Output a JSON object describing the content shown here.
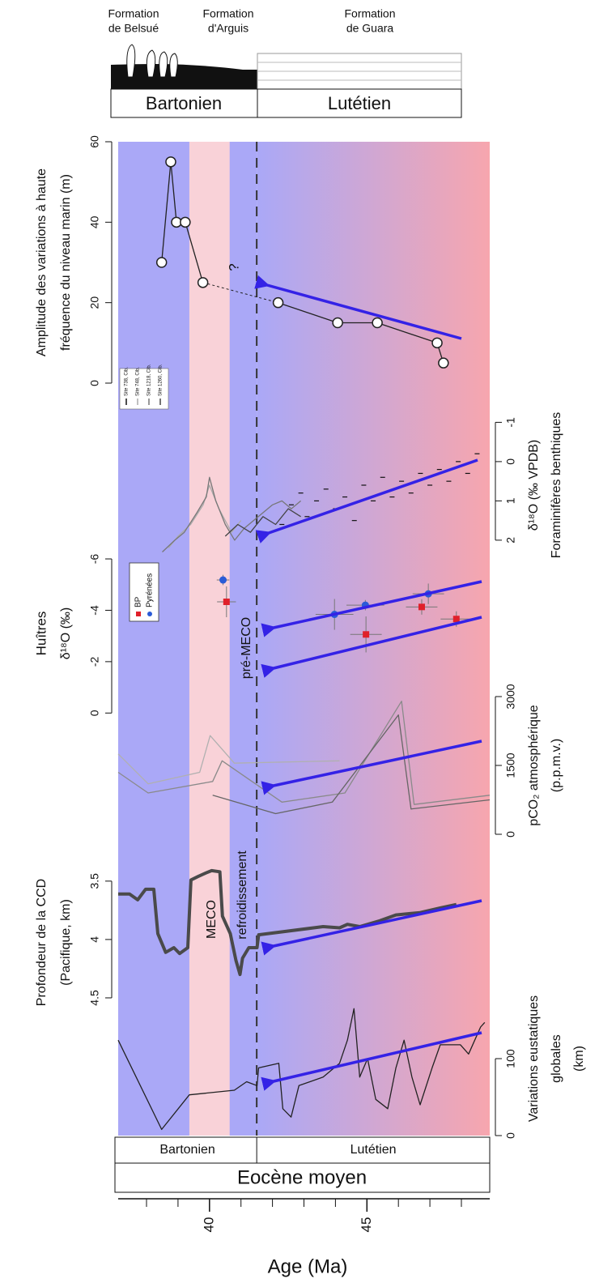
{
  "header": {
    "formations": [
      [
        "Formation",
        "de Belsué"
      ],
      [
        "Formation",
        "d'Arguis"
      ],
      [
        "Formation",
        "de Guara"
      ]
    ],
    "stages": [
      "Bartonien",
      "Lutétien"
    ],
    "epoch": "Eocène moyen"
  },
  "age_axis": {
    "label": "Age (Ma)",
    "xlim": [
      37.1,
      48.9
    ],
    "xticks": [
      40,
      45
    ],
    "minor_xticks": [
      38,
      39,
      41,
      42,
      43,
      44,
      46,
      47,
      48
    ]
  },
  "meco_interval": [
    39.36,
    40.64
  ],
  "cooling_onset": 41.5,
  "annotations": [
    "pré-MECO",
    "MECO",
    "refroidissement"
  ],
  "chart_data": [
    {
      "type": "line",
      "axis_side": "left",
      "axis_label": [
        "Amplitude des variations à haute",
        "fréquence du niveau marin (m)"
      ],
      "ylim": [
        0,
        60
      ],
      "yticks": [
        0,
        20,
        40,
        60
      ],
      "color": "#222",
      "markers": true,
      "annotation": "?",
      "series": [
        {
          "x": [
            38.48,
            38.77,
            38.95,
            39.23,
            39.79
          ],
          "values": [
            30,
            55,
            40,
            40,
            25
          ]
        },
        {
          "x": [
            42.18,
            44.07,
            45.33,
            47.23,
            47.43
          ],
          "values": [
            20,
            15,
            15,
            10,
            5
          ]
        }
      ]
    },
    {
      "type": "line",
      "axis_side": "right",
      "axis_label": [
        "δ¹⁸O (‰ VPDB)",
        "Foraminifères benthiques"
      ],
      "ylim": [
        -1.4,
        2.6
      ],
      "inverted": true,
      "yticks": [
        -1,
        0,
        1,
        2
      ],
      "series": [
        {
          "name": "Site 738, Cib.",
          "color": "#111",
          "style": "dash",
          "x": [
            42.3,
            42.6,
            42.9,
            43.1,
            43.4,
            43.7,
            44.0,
            44.3,
            44.6,
            44.9,
            45.2,
            45.5,
            45.8,
            46.1,
            46.4,
            46.7,
            47.0,
            47.3,
            47.6,
            47.9,
            48.2,
            48.5
          ],
          "values": [
            1.6,
            1.1,
            0.8,
            1.4,
            1.0,
            0.7,
            1.2,
            0.9,
            1.5,
            0.6,
            1.0,
            0.4,
            0.9,
            0.5,
            0.8,
            0.3,
            0.6,
            0.2,
            0.5,
            0.0,
            0.3,
            -0.2
          ]
        },
        {
          "name": "Site 748, Cib.",
          "color": "#aaa",
          "style": "line",
          "x": [
            38.7,
            39.0,
            39.4,
            39.8,
            40.0,
            40.3,
            40.7,
            41.0
          ],
          "values": [
            2.2,
            1.9,
            1.6,
            1.1,
            0.6,
            1.2,
            1.8,
            1.5
          ]
        },
        {
          "name": "Site 1218, Cib.",
          "color": "#777",
          "style": "line",
          "x": [
            38.5,
            38.9,
            39.2,
            39.6,
            39.9,
            40.0,
            40.2,
            40.5,
            40.8,
            41.1,
            41.4,
            41.7,
            42.0,
            42.3,
            42.6,
            42.9
          ],
          "values": [
            2.3,
            2.0,
            1.8,
            1.3,
            0.9,
            0.4,
            1.0,
            1.6,
            2.0,
            1.7,
            1.5,
            1.3,
            1.1,
            1.0,
            1.2,
            1.0
          ]
        },
        {
          "name": "Site 1260, Cib.",
          "color": "#444",
          "style": "line",
          "x": [
            40.5,
            40.9,
            41.3,
            41.7,
            42.1,
            42.5,
            42.9
          ],
          "values": [
            1.9,
            1.6,
            1.8,
            1.4,
            1.6,
            1.2,
            1.4
          ]
        }
      ]
    },
    {
      "type": "scatter",
      "axis_side": "left",
      "axis_label": [
        "Huîtres",
        "δ¹⁸O (‰)"
      ],
      "ylim": [
        -6.6,
        0.4
      ],
      "inverted": true,
      "yticks": [
        -6,
        -4,
        -2,
        0
      ],
      "series": [
        {
          "name": "BP",
          "color": "#e0202a",
          "marker": "square",
          "x": [
            40.54,
            44.97,
            46.74,
            47.84
          ],
          "values": [
            -4.33,
            -3.06,
            -4.13,
            -3.66
          ],
          "errors": [
            0.6,
            0.7,
            0.3,
            0.3
          ],
          "x_errors": [
            0.3,
            0.5,
            0.5,
            0.5
          ]
        },
        {
          "name": "Pyrénées",
          "color": "#2a5bd7",
          "marker": "circle",
          "x": [
            40.43,
            43.97,
            44.95,
            46.95
          ],
          "values": [
            -5.18,
            -3.84,
            -4.2,
            -4.64
          ],
          "errors": [
            0.2,
            0.6,
            0.2,
            0.4
          ],
          "x_errors": [
            0.2,
            0.6,
            0.6,
            0.5
          ]
        }
      ]
    },
    {
      "type": "line",
      "axis_side": "right",
      "axis_label": [
        "pCO₂ atmosphérique",
        "(p.p.m.v.)"
      ],
      "ylim": [
        0,
        3000
      ],
      "yticks": [
        0,
        1500,
        3000
      ],
      "series": [
        {
          "color": "#b0b0b0",
          "x": [
            37.1,
            38.05,
            39.69,
            40.02,
            40.79,
            44.13
          ],
          "values": [
            1750,
            1100,
            1350,
            2150,
            1550,
            1600
          ]
        },
        {
          "color": "#8a8a8a",
          "x": [
            37.1,
            38.05,
            40.1,
            40.4,
            42.3,
            44.3,
            46.1,
            46.5,
            48.9
          ],
          "values": [
            1350,
            900,
            1150,
            1600,
            700,
            900,
            2900,
            650,
            850
          ]
        },
        {
          "color": "#666",
          "x": [
            40.1,
            42.1,
            43.9,
            46.0,
            46.4,
            48.9
          ],
          "values": [
            850,
            450,
            700,
            2600,
            550,
            750
          ]
        }
      ]
    },
    {
      "type": "line",
      "axis_side": "left",
      "axis_label": [
        "Profondeur de la CCD",
        "(Pacifique, km)"
      ],
      "ylim": [
        3.3,
        4.75
      ],
      "inverted": true,
      "yticks": [
        3.5,
        4,
        4.5
      ],
      "line_width": 4,
      "series": [
        {
          "color": "#4a4a4a",
          "x": [
            37.1,
            37.46,
            37.72,
            37.97,
            38.23,
            38.36,
            38.61,
            38.87,
            39.05,
            39.31,
            39.41,
            39.64,
            39.89,
            40.07,
            40.33,
            40.41,
            40.66,
            40.84,
            40.97,
            41.05,
            41.25,
            41.51,
            41.56,
            43.61,
            44.13,
            44.38,
            44.77,
            45.41,
            45.92,
            46.69,
            47.33,
            47.84
          ],
          "values": [
            3.61,
            3.61,
            3.66,
            3.57,
            3.57,
            3.95,
            4.11,
            4.07,
            4.12,
            4.07,
            3.49,
            3.46,
            3.43,
            3.41,
            3.42,
            3.8,
            3.95,
            4.18,
            4.3,
            4.16,
            4.07,
            4.07,
            3.96,
            3.89,
            3.9,
            3.87,
            3.89,
            3.84,
            3.79,
            3.77,
            3.73,
            3.7
          ]
        }
      ]
    },
    {
      "type": "line",
      "axis_side": "right",
      "axis_label": [
        "Variations eustatiques",
        "globales",
        "(km)"
      ],
      "ylim": [
        0,
        200
      ],
      "yticks": [
        0,
        100
      ],
      "series": [
        {
          "color": "#222",
          "x": [
            37.1,
            38.48,
            39.36,
            40.79,
            41.18,
            41.51,
            41.56,
            42.2,
            42.33,
            42.59,
            42.84,
            43.61,
            44.13,
            44.38,
            44.59,
            44.77,
            45.02,
            45.28,
            45.66,
            45.92,
            46.18,
            46.43,
            46.69,
            47.07,
            47.33,
            47.97,
            48.23,
            48.61,
            48.74
          ],
          "values": [
            124,
            8,
            53,
            59,
            70,
            65,
            88,
            94,
            35,
            24,
            65,
            76,
            94,
            124,
            165,
            76,
            100,
            47,
            35,
            88,
            124,
            76,
            40,
            88,
            118,
            118,
            106,
            141,
            147
          ]
        }
      ]
    }
  ]
}
